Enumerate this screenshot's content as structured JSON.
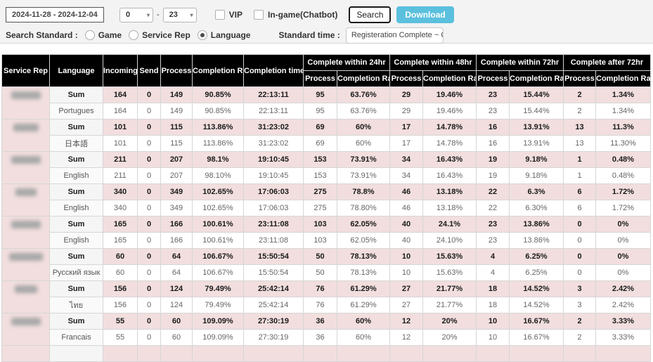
{
  "filters": {
    "date_range": "2024-11-28 - 2024-12-04",
    "hour_from": "0",
    "hour_range_separator": "-",
    "hour_to": "23",
    "vip_label": "VIP",
    "ingame_label": "In-game(Chatbot)",
    "search_label": "Search",
    "download_label": "Download",
    "search_standard_label": "Search Standard :",
    "radio_options": [
      "Game",
      "Service Rep",
      "Language"
    ],
    "selected_radio": "Language",
    "standard_time_label": "Standard time :",
    "standard_time_value": "Registeration Complete ~ Cer"
  },
  "colors": {
    "accent": "#5bc0de",
    "header_bg": "#000000",
    "sum_row_bg": "#f2dede"
  },
  "table": {
    "columns": [
      "Service Rep",
      "Language",
      "Incoming",
      "Send",
      "Process",
      "Completion Rate",
      "Completion time"
    ],
    "group_columns": [
      "Complete within 24hr",
      "Complete within 48hr",
      "Complete within 72hr",
      "Complete after 72hr"
    ],
    "sub_columns": [
      "Process",
      "Completion Rate"
    ],
    "rep_names_redacted": true,
    "groups": [
      {
        "rows": [
          {
            "language": "Sum",
            "is_sum": true,
            "values": [
              "164",
              "0",
              "149",
              "90.85%",
              "22:13:11",
              "95",
              "63.76%",
              "29",
              "19.46%",
              "23",
              "15.44%",
              "2",
              "1.34%"
            ]
          },
          {
            "language": "Portugues",
            "is_sum": false,
            "values": [
              "164",
              "0",
              "149",
              "90.85%",
              "22:13:11",
              "95",
              "63.76%",
              "29",
              "19.46%",
              "23",
              "15.44%",
              "2",
              "1.34%"
            ]
          }
        ]
      },
      {
        "rows": [
          {
            "language": "Sum",
            "is_sum": true,
            "values": [
              "101",
              "0",
              "115",
              "113.86%",
              "31:23:02",
              "69",
              "60%",
              "17",
              "14.78%",
              "16",
              "13.91%",
              "13",
              "11.3%"
            ]
          },
          {
            "language": "日本語",
            "is_sum": false,
            "values": [
              "101",
              "0",
              "115",
              "113.86%",
              "31:23:02",
              "69",
              "60%",
              "17",
              "14.78%",
              "16",
              "13.91%",
              "13",
              "11.30%"
            ]
          }
        ]
      },
      {
        "rows": [
          {
            "language": "Sum",
            "is_sum": true,
            "values": [
              "211",
              "0",
              "207",
              "98.1%",
              "19:10:45",
              "153",
              "73.91%",
              "34",
              "16.43%",
              "19",
              "9.18%",
              "1",
              "0.48%"
            ]
          },
          {
            "language": "English",
            "is_sum": false,
            "values": [
              "211",
              "0",
              "207",
              "98.10%",
              "19:10:45",
              "153",
              "73.91%",
              "34",
              "16.43%",
              "19",
              "9.18%",
              "1",
              "0.48%"
            ]
          }
        ]
      },
      {
        "rows": [
          {
            "language": "Sum",
            "is_sum": true,
            "values": [
              "340",
              "0",
              "349",
              "102.65%",
              "17:06:03",
              "275",
              "78.8%",
              "46",
              "13.18%",
              "22",
              "6.3%",
              "6",
              "1.72%"
            ]
          },
          {
            "language": "English",
            "is_sum": false,
            "values": [
              "340",
              "0",
              "349",
              "102.65%",
              "17:06:03",
              "275",
              "78.80%",
              "46",
              "13.18%",
              "22",
              "6.30%",
              "6",
              "1.72%"
            ]
          }
        ]
      },
      {
        "rows": [
          {
            "language": "Sum",
            "is_sum": true,
            "values": [
              "165",
              "0",
              "166",
              "100.61%",
              "23:11:08",
              "103",
              "62.05%",
              "40",
              "24.1%",
              "23",
              "13.86%",
              "0",
              "0%"
            ]
          },
          {
            "language": "English",
            "is_sum": false,
            "values": [
              "165",
              "0",
              "166",
              "100.61%",
              "23:11:08",
              "103",
              "62.05%",
              "40",
              "24.10%",
              "23",
              "13.86%",
              "0",
              "0%"
            ]
          }
        ]
      },
      {
        "rows": [
          {
            "language": "Sum",
            "is_sum": true,
            "values": [
              "60",
              "0",
              "64",
              "106.67%",
              "15:50:54",
              "50",
              "78.13%",
              "10",
              "15.63%",
              "4",
              "6.25%",
              "0",
              "0%"
            ]
          },
          {
            "language": "Русский язык",
            "is_sum": false,
            "values": [
              "60",
              "0",
              "64",
              "106.67%",
              "15:50:54",
              "50",
              "78.13%",
              "10",
              "15.63%",
              "4",
              "6.25%",
              "0",
              "0%"
            ]
          }
        ]
      },
      {
        "rows": [
          {
            "language": "Sum",
            "is_sum": true,
            "values": [
              "156",
              "0",
              "124",
              "79.49%",
              "25:42:14",
              "76",
              "61.29%",
              "27",
              "21.77%",
              "18",
              "14.52%",
              "3",
              "2.42%"
            ]
          },
          {
            "language": "ไทย",
            "is_sum": false,
            "values": [
              "156",
              "0",
              "124",
              "79.49%",
              "25:42:14",
              "76",
              "61.29%",
              "27",
              "21.77%",
              "18",
              "14.52%",
              "3",
              "2.42%"
            ]
          }
        ]
      },
      {
        "rows": [
          {
            "language": "Sum",
            "is_sum": true,
            "values": [
              "55",
              "0",
              "60",
              "109.09%",
              "27:30:19",
              "36",
              "60%",
              "12",
              "20%",
              "10",
              "16.67%",
              "2",
              "3.33%"
            ]
          },
          {
            "language": "Francais",
            "is_sum": false,
            "values": [
              "55",
              "0",
              "60",
              "109.09%",
              "27:30:19",
              "36",
              "60%",
              "12",
              "20%",
              "10",
              "16.67%",
              "2",
              "3.33%"
            ]
          }
        ]
      }
    ]
  }
}
